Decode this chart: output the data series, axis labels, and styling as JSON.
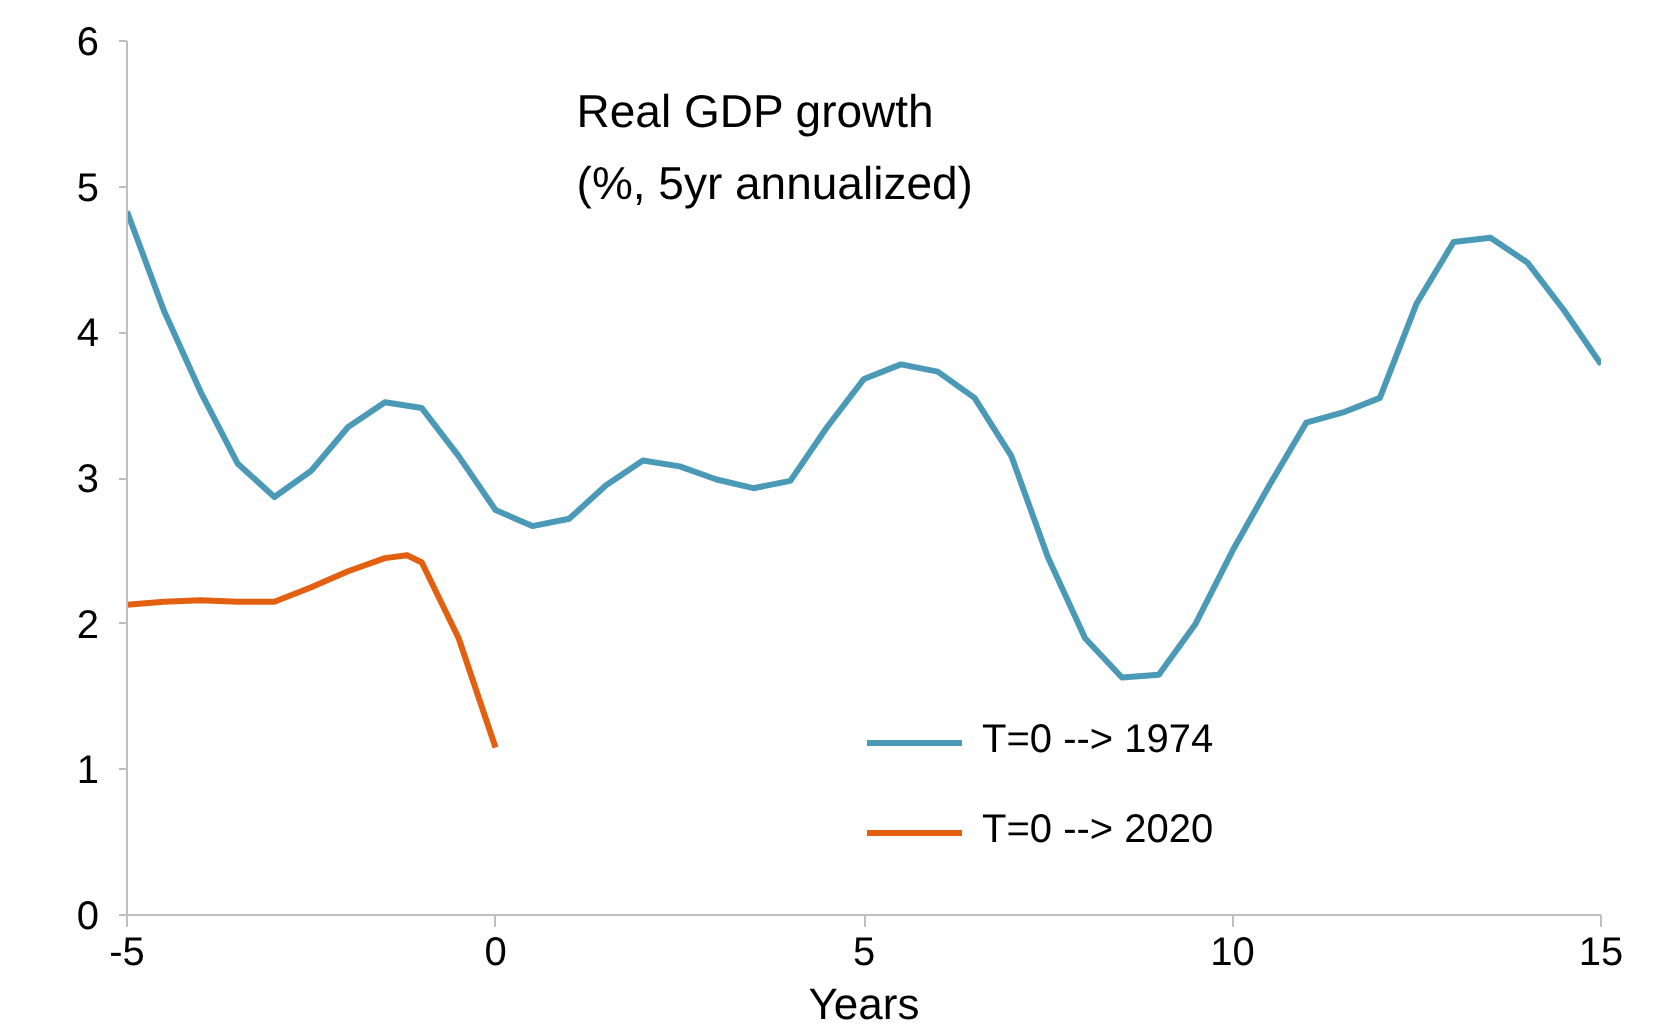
{
  "chart_data": {
    "type": "line",
    "title": "Real GDP growth",
    "subtitle": "(%, 5yr annualized)",
    "xlabel": "Years",
    "xlim": [
      -5,
      15
    ],
    "xticks": [
      -5,
      0,
      5,
      10,
      15
    ],
    "ylim": [
      0,
      6
    ],
    "yticks": [
      0,
      1,
      2,
      3,
      4,
      5,
      6
    ],
    "grid": false,
    "legend": "bottom right",
    "series": [
      {
        "name": "T=0 --> 1974",
        "color": "#4a9ab7",
        "x": [
          -5,
          -4.5,
          -4,
          -3.5,
          -3,
          -2.5,
          -2,
          -1.5,
          -1,
          -0.5,
          0,
          0.5,
          1,
          1.5,
          2,
          2.5,
          3,
          3.5,
          4,
          4.5,
          5,
          5.5,
          6,
          6.5,
          7,
          7.5,
          8,
          8.5,
          9,
          9.5,
          10,
          10.5,
          11,
          11.5,
          12,
          12.5,
          13,
          13.5,
          14,
          14.5,
          15
        ],
        "values": [
          4.83,
          4.15,
          3.59,
          3.1,
          2.87,
          3.05,
          3.35,
          3.52,
          3.48,
          3.15,
          2.78,
          2.67,
          2.72,
          2.95,
          3.12,
          3.08,
          2.99,
          2.93,
          2.98,
          3.35,
          3.68,
          3.78,
          3.73,
          3.55,
          3.15,
          2.45,
          1.9,
          1.63,
          1.65,
          2.0,
          2.5,
          2.95,
          3.38,
          3.45,
          3.55,
          4.2,
          4.62,
          4.65,
          4.48,
          4.15,
          3.78
        ]
      },
      {
        "name": "T=0 --> 2020",
        "color": "#e2600f",
        "x": [
          -5,
          -4.5,
          -4,
          -3.5,
          -3,
          -2.5,
          -2,
          -1.5,
          -1.2,
          -1,
          -0.5,
          0
        ],
        "values": [
          2.13,
          2.15,
          2.16,
          2.15,
          2.15,
          2.25,
          2.36,
          2.45,
          2.47,
          2.42,
          1.9,
          1.15
        ]
      }
    ]
  }
}
